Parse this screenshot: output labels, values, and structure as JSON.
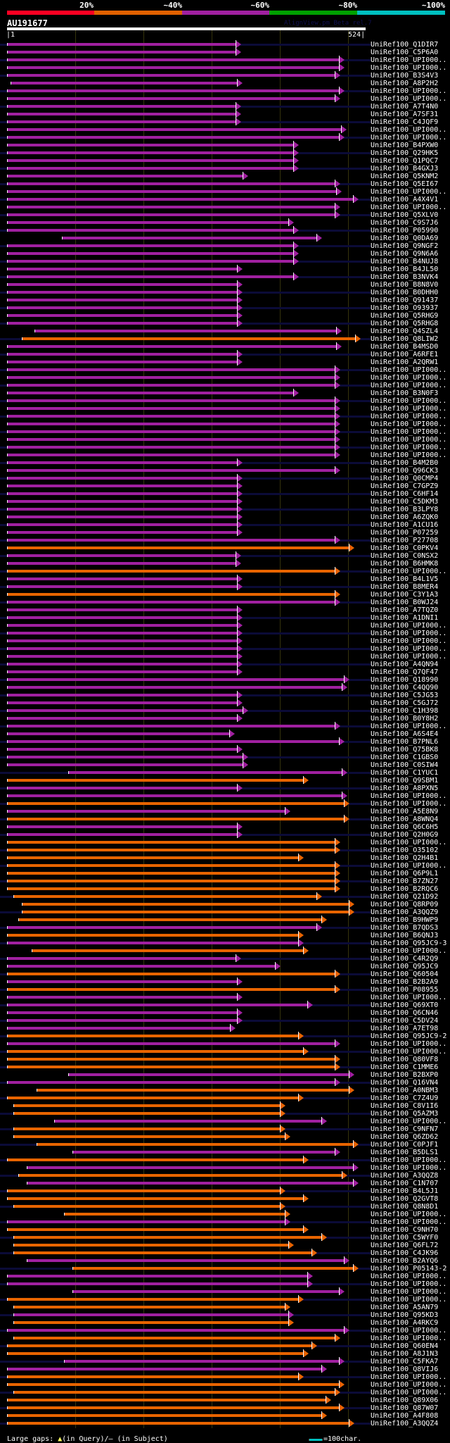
{
  "legend": {
    "percent_labels": [
      "20%",
      "~40%",
      "~60%",
      "~80%",
      "~100%"
    ],
    "percent_colors": [
      "#ff0022",
      "#e06000",
      "#a020a0",
      "#00a000",
      "#00c0c0"
    ]
  },
  "query": {
    "title": "AU191677",
    "start": "1",
    "end": "524",
    "length": 524
  },
  "watermark": "AlignView.pm Beta rel.7",
  "colors": {
    "m": "#a020a0",
    "o": "#e86400",
    "stripe": "#0b0b38"
  },
  "footer": {
    "gaps_prefix": "Large gaps: ",
    "gap_query_icon": "▲",
    "gaps_query": "(in Query)/",
    "gap_subject_icon": "–",
    "gaps_subject": " (in Subject)",
    "scale_label": "=100char."
  },
  "rows": [
    [
      "UniRef100_Q1DIR7",
      "m",
      1,
      342
    ],
    [
      "UniRef100_C5P6A0",
      "m",
      1,
      342
    ],
    [
      "UniRef100_UPI000..",
      "m",
      1,
      494
    ],
    [
      "UniRef100_UPI000..",
      "m",
      1,
      494
    ],
    [
      "UniRef100_B3S4V3",
      "m",
      1,
      488
    ],
    [
      "UniRef100_A8P2H2",
      "m",
      6,
      344
    ],
    [
      "UniRef100_UPI000..",
      "m",
      1,
      494
    ],
    [
      "UniRef100_UPI000..",
      "m",
      1,
      488
    ],
    [
      "UniRef100_A7T4N0",
      "m",
      1,
      342
    ],
    [
      "UniRef100_A7SF31",
      "m",
      1,
      342
    ],
    [
      "UniRef100_C4JQF9",
      "m",
      1,
      342
    ],
    [
      "UniRef100_UPI000..",
      "m",
      1,
      497
    ],
    [
      "UniRef100_UPI000..",
      "m",
      1,
      494
    ],
    [
      "UniRef100_B4PXW0",
      "m",
      1,
      427
    ],
    [
      "UniRef100_Q29HK5",
      "m",
      1,
      427
    ],
    [
      "UniRef100_Q1PQC7",
      "m",
      1,
      427
    ],
    [
      "UniRef100_B4GXJ3",
      "m",
      1,
      427
    ],
    [
      "UniRef100_Q5KNM2",
      "m",
      1,
      353
    ],
    [
      "UniRef100_Q5EI67",
      "m",
      1,
      488
    ],
    [
      "UniRef100_UPI000..",
      "m",
      1,
      490
    ],
    [
      "UniRef100_A4X4V1",
      "m",
      1,
      514
    ],
    [
      "UniRef100_UPI000..",
      "m",
      1,
      488
    ],
    [
      "UniRef100_Q5XLV0",
      "m",
      1,
      488
    ],
    [
      "UniRef100_C9S7J6",
      "m",
      1,
      420
    ],
    [
      "UniRef100_P05990",
      "m",
      1,
      427
    ],
    [
      "UniRef100_Q0DA69",
      "m",
      81,
      461
    ],
    [
      "UniRef100_Q9NGF2",
      "m",
      1,
      427
    ],
    [
      "UniRef100_Q9N6A6",
      "m",
      1,
      427
    ],
    [
      "UniRef100_B4NUJ8",
      "m",
      1,
      427
    ],
    [
      "UniRef100_B4JL50",
      "m",
      1,
      344
    ],
    [
      "UniRef100_B3NVK4",
      "m",
      1,
      427
    ],
    [
      "UniRef100_B8N8V0",
      "m",
      1,
      344
    ],
    [
      "UniRef100_B0DHH0",
      "m",
      1,
      344
    ],
    [
      "UniRef100_Q91437",
      "m",
      1,
      344
    ],
    [
      "UniRef100_O93937",
      "m",
      1,
      344
    ],
    [
      "UniRef100_Q5RHG9",
      "m",
      1,
      344
    ],
    [
      "UniRef100_Q5RHG8",
      "m",
      1,
      344
    ],
    [
      "UniRef100_Q4SZL4",
      "m",
      41,
      490
    ],
    [
      "UniRef100_Q8LIW2",
      "o",
      23,
      517
    ],
    [
      "UniRef100_B4MSD0",
      "m",
      1,
      490
    ],
    [
      "UniRef100_A6RFE1",
      "m",
      1,
      344
    ],
    [
      "UniRef100_A2QRW1",
      "m",
      1,
      344
    ],
    [
      "UniRef100_UPI000..",
      "m",
      1,
      488
    ],
    [
      "UniRef100_UPI000..",
      "m",
      1,
      488
    ],
    [
      "UniRef100_UPI000..",
      "m",
      1,
      488
    ],
    [
      "UniRef100_B3N0F3",
      "m",
      1,
      427
    ],
    [
      "UniRef100_UPI000..",
      "m",
      1,
      488
    ],
    [
      "UniRef100_UPI000..",
      "m",
      1,
      488
    ],
    [
      "UniRef100_UPI000..",
      "m",
      1,
      488
    ],
    [
      "UniRef100_UPI000..",
      "m",
      1,
      488
    ],
    [
      "UniRef100_UPI000..",
      "m",
      1,
      488
    ],
    [
      "UniRef100_UPI000..",
      "m",
      1,
      488
    ],
    [
      "UniRef100_UPI000..",
      "m",
      1,
      488
    ],
    [
      "UniRef100_UPI000..",
      "m",
      1,
      488
    ],
    [
      "UniRef100_B4M2B0",
      "m",
      1,
      344
    ],
    [
      "UniRef100_Q96CK3",
      "m",
      1,
      488
    ],
    [
      "UniRef100_Q0CMP4",
      "m",
      1,
      344
    ],
    [
      "UniRef100_C7GPZ9",
      "m",
      1,
      344
    ],
    [
      "UniRef100_C6HF14",
      "m",
      1,
      344
    ],
    [
      "UniRef100_C5DKM3",
      "m",
      1,
      344
    ],
    [
      "UniRef100_B3LPY8",
      "m",
      1,
      344
    ],
    [
      "UniRef100_A6ZQK0",
      "m",
      1,
      344
    ],
    [
      "UniRef100_A1CU16",
      "m",
      1,
      344
    ],
    [
      "UniRef100_P07259",
      "m",
      1,
      344
    ],
    [
      "UniRef100_P27708",
      "m",
      1,
      488
    ],
    [
      "UniRef100_C0PKV4",
      "o",
      1,
      508
    ],
    [
      "UniRef100_C0NSX2",
      "m",
      1,
      342
    ],
    [
      "UniRef100_B6HMK8",
      "m",
      1,
      342
    ],
    [
      "UniRef100_UPI000..",
      "o",
      1,
      488
    ],
    [
      "UniRef100_B4L1V5",
      "m",
      1,
      344
    ],
    [
      "UniRef100_B8MER4",
      "m",
      1,
      344
    ],
    [
      "UniRef100_C3Y1A3",
      "o",
      1,
      488
    ],
    [
      "UniRef100_B0WJ24",
      "m",
      1,
      488
    ],
    [
      "UniRef100_A7TQZ0",
      "m",
      1,
      344
    ],
    [
      "UniRef100_A1DNI1",
      "m",
      1,
      344
    ],
    [
      "UniRef100_UPI000..",
      "m",
      1,
      344
    ],
    [
      "UniRef100_UPI000..",
      "m",
      1,
      344
    ],
    [
      "UniRef100_UPI000..",
      "m",
      1,
      344
    ],
    [
      "UniRef100_UPI000..",
      "m",
      1,
      344
    ],
    [
      "UniRef100_UPI000..",
      "m",
      1,
      344
    ],
    [
      "UniRef100_A4QN94",
      "m",
      1,
      344
    ],
    [
      "UniRef100_Q7QF47",
      "m",
      1,
      344
    ],
    [
      "UniRef100_Q18990",
      "m",
      1,
      501
    ],
    [
      "UniRef100_C4QQ90",
      "m",
      1,
      498
    ],
    [
      "UniRef100_C5JG53",
      "m",
      1,
      344
    ],
    [
      "UniRef100_C5GJ72",
      "m",
      1,
      344
    ],
    [
      "UniRef100_C1H398",
      "m",
      1,
      353
    ],
    [
      "UniRef100_B0Y8H2",
      "m",
      1,
      344
    ],
    [
      "UniRef100_UPI000..",
      "m",
      1,
      488
    ],
    [
      "UniRef100_A6S4E4",
      "m",
      1,
      333
    ],
    [
      "UniRef100_B7PNL6",
      "m",
      1,
      494
    ],
    [
      "UniRef100_Q75BK8",
      "m",
      1,
      344
    ],
    [
      "UniRef100_C1GBS0",
      "m",
      1,
      353
    ],
    [
      "UniRef100_C0SIW4",
      "m",
      1,
      353
    ],
    [
      "UniRef100_C1YUC1",
      "m",
      91,
      498
    ],
    [
      "UniRef100_Q9SBM1",
      "o",
      1,
      441
    ],
    [
      "UniRef100_A8PXN5",
      "m",
      1,
      344
    ],
    [
      "UniRef100_UPI000..",
      "m",
      1,
      498
    ],
    [
      "UniRef100_UPI000..",
      "o",
      1,
      501
    ],
    [
      "UniRef100_A5E8N9",
      "m",
      1,
      414
    ],
    [
      "UniRef100_A8WNQ4",
      "o",
      1,
      501
    ],
    [
      "UniRef100_Q6C6H5",
      "m",
      1,
      344
    ],
    [
      "UniRef100_Q2H0G9",
      "m",
      1,
      344
    ],
    [
      "UniRef100_UPI000..",
      "o",
      1,
      488
    ],
    [
      "UniRef100_O35102",
      "o",
      1,
      488
    ],
    [
      "UniRef100_Q2H4B1",
      "o",
      1,
      434
    ],
    [
      "UniRef100_UPI000..",
      "o",
      1,
      488
    ],
    [
      "UniRef100_Q6P9L1",
      "o",
      1,
      488
    ],
    [
      "UniRef100_B7ZN27",
      "o",
      1,
      488
    ],
    [
      "UniRef100_B2RQC6",
      "o",
      1,
      488
    ],
    [
      "UniRef100_Q21D92",
      "o",
      10,
      461
    ],
    [
      "UniRef100_Q8RP09",
      "o",
      23,
      508
    ],
    [
      "UniRef100_A3QQZ9",
      "o",
      23,
      508
    ],
    [
      "UniRef100_B9HWP9",
      "o",
      17,
      468
    ],
    [
      "UniRef100_B7QDS3",
      "m",
      1,
      461
    ],
    [
      "UniRef100_B6QNJ3",
      "o",
      1,
      434
    ],
    [
      "UniRef100_Q95JC9-3",
      "m",
      1,
      434
    ],
    [
      "UniRef100_UPI000..",
      "o",
      37,
      441
    ],
    [
      "UniRef100_C4R2Q9",
      "m",
      1,
      342
    ],
    [
      "UniRef100_Q95JC9",
      "m",
      1,
      400
    ],
    [
      "UniRef100_Q60504",
      "o",
      1,
      488
    ],
    [
      "UniRef100_B2B2A9",
      "m",
      1,
      344
    ],
    [
      "UniRef100_P08955",
      "o",
      1,
      488
    ],
    [
      "UniRef100_UPI000..",
      "m",
      1,
      344
    ],
    [
      "UniRef100_Q69XT0",
      "m",
      1,
      447
    ],
    [
      "UniRef100_Q6CN46",
      "m",
      1,
      344
    ],
    [
      "UniRef100_C5DV24",
      "m",
      1,
      344
    ],
    [
      "UniRef100_A7ET98",
      "m",
      1,
      334
    ],
    [
      "UniRef100_Q95JC9-2",
      "o",
      1,
      434
    ],
    [
      "UniRef100_UPI000..",
      "m",
      1,
      488
    ],
    [
      "UniRef100_UPI000..",
      "o",
      1,
      441
    ],
    [
      "UniRef100_Q80VF8",
      "o",
      1,
      488
    ],
    [
      "UniRef100_C1MME6",
      "o",
      1,
      488
    ],
    [
      "UniRef100_B2BXP0",
      "m",
      91,
      508
    ],
    [
      "UniRef100_Q16VN4",
      "m",
      1,
      488
    ],
    [
      "UniRef100_A0NBM3",
      "o",
      44,
      508
    ],
    [
      "UniRef100_C7Z4U9",
      "o",
      1,
      434
    ],
    [
      "UniRef100_C8V1I6",
      "o",
      10,
      407
    ],
    [
      "UniRef100_Q5AZM3",
      "o",
      10,
      407
    ],
    [
      "UniRef100_UPI000..",
      "m",
      70,
      468
    ],
    [
      "UniRef100_C9NFN7",
      "o",
      10,
      407
    ],
    [
      "UniRef100_Q6ZD62",
      "o",
      10,
      414
    ],
    [
      "UniRef100_C0PJF1",
      "o",
      44,
      514
    ],
    [
      "UniRef100_B5DLS1",
      "m",
      97,
      488
    ],
    [
      "UniRef100_UPI000..",
      "o",
      1,
      441
    ],
    [
      "UniRef100_UPI000..",
      "m",
      30,
      514
    ],
    [
      "UniRef100_A3QQZ8",
      "o",
      17,
      498
    ],
    [
      "UniRef100_C1N707",
      "m",
      30,
      514
    ],
    [
      "UniRef100_B4L5J1",
      "o",
      1,
      407
    ],
    [
      "UniRef100_Q2GVT8",
      "o",
      1,
      441
    ],
    [
      "UniRef100_Q8N8D1",
      "o",
      10,
      407
    ],
    [
      "UniRef100_UPI000..",
      "o",
      84,
      414
    ],
    [
      "UniRef100_UPI000..",
      "m",
      1,
      414
    ],
    [
      "UniRef100_C9NH70",
      "o",
      1,
      441
    ],
    [
      "UniRef100_C5WYF0",
      "o",
      10,
      468
    ],
    [
      "UniRef100_Q6FL72",
      "o",
      10,
      420
    ],
    [
      "UniRef100_C4JK96",
      "o",
      10,
      454
    ],
    [
      "UniRef100_B2AYQ6",
      "m",
      30,
      501
    ],
    [
      "UniRef100_P05143-2",
      "o",
      97,
      514
    ],
    [
      "UniRef100_UPI000..",
      "m",
      1,
      447
    ],
    [
      "UniRef100_UPI000..",
      "m",
      1,
      447
    ],
    [
      "UniRef100_UPI000..",
      "m",
      97,
      494
    ],
    [
      "UniRef100_UPI000..",
      "o",
      1,
      434
    ],
    [
      "UniRef100_A5AN79",
      "o",
      10,
      414
    ],
    [
      "UniRef100_Q95KD3",
      "m",
      10,
      420
    ],
    [
      "UniRef100_A4RKC9",
      "o",
      10,
      420
    ],
    [
      "UniRef100_UPI000..",
      "m",
      1,
      501
    ],
    [
      "UniRef100_UPI000..",
      "o",
      10,
      488
    ],
    [
      "UniRef100_Q60EN4",
      "o",
      1,
      454
    ],
    [
      "UniRef100_A8J1N3",
      "o",
      1,
      441
    ],
    [
      "UniRef100_C5FKA7",
      "m",
      84,
      494
    ],
    [
      "UniRef100_Q8VIJ6",
      "m",
      1,
      468
    ],
    [
      "UniRef100_UPI000..",
      "o",
      1,
      434
    ],
    [
      "UniRef100_UPI000..",
      "o",
      1,
      494
    ],
    [
      "UniRef100_UPI000..",
      "o",
      10,
      488
    ],
    [
      "UniRef100_Q89X06",
      "o",
      1,
      474
    ],
    [
      "UniRef100_Q87W07",
      "o",
      1,
      494
    ],
    [
      "UniRef100_A4F808",
      "o",
      1,
      468
    ],
    [
      "UniRef100_A3QQZ4",
      "o",
      1,
      508
    ]
  ]
}
